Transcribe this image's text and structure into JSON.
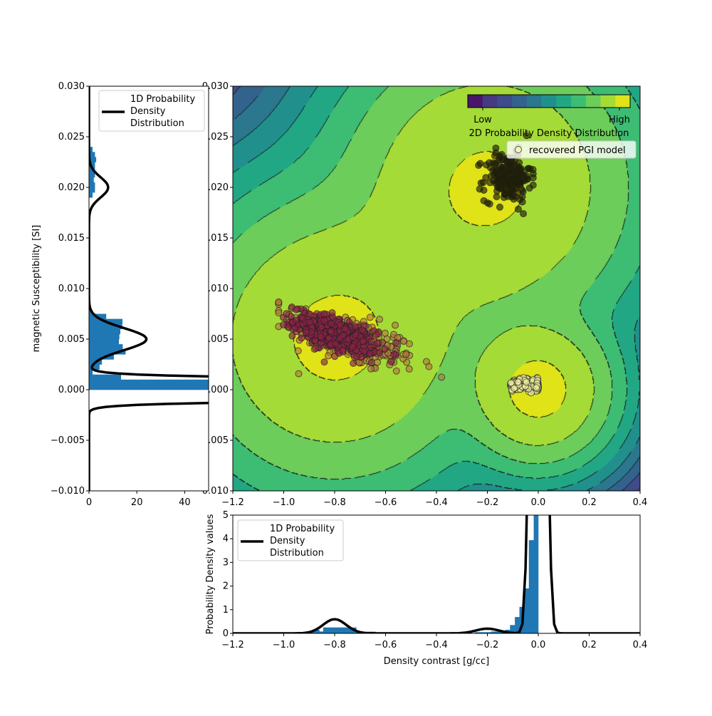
{
  "chart_data": [
    {
      "type": "scatter",
      "panel": "main",
      "xlim": [
        -1.2,
        0.4
      ],
      "ylim": [
        -0.01,
        0.03
      ],
      "x_ticks": [
        "−1.2",
        "−1.0",
        "−0.8",
        "−0.6",
        "−0.4",
        "−0.2",
        "0.0",
        "0.2",
        "0.4"
      ],
      "x_tick_values": [
        -1.2,
        -1.0,
        -0.8,
        -0.6,
        -0.4,
        -0.2,
        0.0,
        0.2,
        0.4
      ],
      "y_ticks": [
        "−0.010",
        "−0.005",
        "0.000",
        "0.005",
        "0.010",
        "0.015",
        "0.020",
        "0.025",
        "0.030"
      ],
      "y_tick_values": [
        -0.01,
        -0.005,
        0.0,
        0.005,
        0.01,
        0.015,
        0.02,
        0.025,
        0.03
      ],
      "contour": {
        "colormap": "viridis",
        "line_style": "dash-dot",
        "components": [
          {
            "mean": [
              -0.8,
              0.005
            ]
          },
          {
            "mean": [
              -0.2,
              0.02
            ]
          },
          {
            "mean": [
              0.0,
              0.0
            ]
          }
        ],
        "level_colors": [
          "#471669",
          "#463a80",
          "#3e4c8a",
          "#33628d",
          "#2a778e",
          "#21908c",
          "#22a785",
          "#3dbc74",
          "#6ccd5a",
          "#a5db36",
          "#dfe318"
        ]
      },
      "colorbar": {
        "low_label": "Low",
        "high_label": "High",
        "label": "2D Probability Density Distribution"
      },
      "legend": {
        "entries": [
          {
            "label": "recovered PGI model",
            "marker_color": "#f5f5b8"
          }
        ]
      },
      "scatter_groups": [
        {
          "color": "#b37a3c",
          "center": [
            -0.74,
            0.005
          ],
          "spread": [
            0.13,
            0.0012
          ],
          "slope": -0.008,
          "n": 260
        },
        {
          "color": "#8e2246",
          "center": [
            -0.8,
            0.0055
          ],
          "spread": [
            0.08,
            0.0008
          ],
          "slope": -0.008,
          "n": 420
        },
        {
          "color": "#1f1f00",
          "center": [
            -0.12,
            0.021
          ],
          "spread": [
            0.045,
            0.0012
          ],
          "slope": 0,
          "n": 220
        },
        {
          "color": "#ecec9e",
          "center": [
            -0.055,
            0.0005
          ],
          "spread": [
            0.035,
            0.0003
          ],
          "slope": 0,
          "n": 260
        }
      ]
    },
    {
      "type": "bar",
      "panel": "left",
      "orientation": "horizontal",
      "xlim": [
        0,
        50
      ],
      "ylim": [
        -0.01,
        0.03
      ],
      "ylabel": "magnetic Susceptibility [SI]",
      "x_ticks": [
        "0",
        "20",
        "40"
      ],
      "x_tick_values": [
        0,
        20,
        40
      ],
      "y_ticks": [
        "−0.010",
        "−0.005",
        "0.000",
        "0.005",
        "0.010",
        "0.015",
        "0.020",
        "0.025",
        "0.030"
      ],
      "y_tick_values": [
        -0.01,
        -0.005,
        0.0,
        0.005,
        0.01,
        0.015,
        0.02,
        0.025,
        0.03
      ],
      "bar_color": "#1f77b4",
      "bins": [
        [
          0.0,
          0.0005,
          60
        ],
        [
          0.0005,
          0.001,
          60
        ],
        [
          0.001,
          0.0015,
          13.4
        ],
        [
          0.0015,
          0.002,
          1.5
        ],
        [
          0.002,
          0.0025,
          4.4
        ],
        [
          0.0025,
          0.003,
          5.4
        ],
        [
          0.003,
          0.0035,
          10.4
        ],
        [
          0.0035,
          0.004,
          15.3
        ],
        [
          0.004,
          0.0045,
          14.1
        ],
        [
          0.0045,
          0.005,
          12.5
        ],
        [
          0.005,
          0.0055,
          12.7
        ],
        [
          0.0055,
          0.006,
          13.1
        ],
        [
          0.006,
          0.0065,
          13.9
        ],
        [
          0.0065,
          0.007,
          14.0
        ],
        [
          0.007,
          0.0075,
          7.2
        ],
        [
          0.0075,
          0.008,
          1.0
        ],
        [
          0.019,
          0.0195,
          1.5
        ],
        [
          0.0195,
          0.02,
          2.5
        ],
        [
          0.02,
          0.0205,
          2.5
        ],
        [
          0.0205,
          0.021,
          2.0
        ],
        [
          0.021,
          0.0215,
          2.5
        ],
        [
          0.0215,
          0.022,
          2.5
        ],
        [
          0.022,
          0.0225,
          2.5
        ],
        [
          0.0225,
          0.023,
          3.0
        ],
        [
          0.023,
          0.0235,
          2.5
        ],
        [
          0.0235,
          0.024,
          1.5
        ],
        [
          0.024,
          0.0245,
          0.5
        ]
      ],
      "pdf_curve": {
        "legend_label": "1D Probability\nDensity\nDistribution",
        "legend_lines": [
          "1D Probability",
          "Density",
          "Distribution"
        ],
        "components": [
          {
            "mean": 0.02,
            "std": 0.001,
            "peak": 8
          },
          {
            "mean": 0.005,
            "std": 0.0011,
            "peak": 24
          },
          {
            "mean": 0.0,
            "std": 0.00055,
            "peak": 840
          }
        ]
      }
    },
    {
      "type": "bar",
      "panel": "bottom",
      "xlim": [
        -1.2,
        0.4
      ],
      "ylim": [
        0,
        5
      ],
      "xlabel": "Density contrast [g/cc]",
      "ylabel": "Probability Density values",
      "x_ticks": [
        "−1.2",
        "−1.0",
        "−0.8",
        "−0.6",
        "−0.4",
        "−0.2",
        "0.0",
        "0.2",
        "0.4"
      ],
      "x_tick_values": [
        -1.2,
        -1.0,
        -0.8,
        -0.6,
        -0.4,
        -0.2,
        0.0,
        0.2,
        0.4
      ],
      "y_ticks": [
        "0",
        "1",
        "2",
        "3",
        "4",
        "5"
      ],
      "y_tick_values": [
        0,
        1,
        2,
        3,
        4,
        5
      ],
      "bar_color": "#1f77b4",
      "bins": [
        [
          -0.945,
          -0.9,
          0.05
        ],
        [
          -0.9,
          -0.88,
          0.1
        ],
        [
          -0.88,
          -0.86,
          0.15
        ],
        [
          -0.86,
          -0.845,
          0.08
        ],
        [
          -0.845,
          -0.715,
          0.25
        ],
        [
          -0.715,
          -0.69,
          0.08
        ],
        [
          -0.675,
          -0.64,
          0.07
        ],
        [
          -0.64,
          -0.62,
          0.04
        ],
        [
          -0.25,
          -0.185,
          0.05
        ],
        [
          -0.185,
          -0.13,
          0.08
        ],
        [
          -0.13,
          -0.111,
          0.15
        ],
        [
          -0.111,
          -0.092,
          0.35
        ],
        [
          -0.092,
          -0.074,
          0.69
        ],
        [
          -0.074,
          -0.055,
          1.12
        ],
        [
          -0.055,
          -0.037,
          1.9
        ],
        [
          -0.037,
          -0.018,
          3.94
        ],
        [
          -0.018,
          0.0,
          6.0
        ]
      ],
      "pdf_curve": {
        "legend_label": "1D Probability\nDensity\nDistribution",
        "legend_lines": [
          "1D Probability",
          "Density",
          "Distribution"
        ],
        "components": [
          {
            "mean": -0.8,
            "std": 0.045,
            "peak": 0.6
          },
          {
            "mean": -0.2,
            "std": 0.045,
            "peak": 0.2
          },
          {
            "mean": 0.0,
            "std": 0.019,
            "peak": 87
          }
        ]
      }
    }
  ]
}
